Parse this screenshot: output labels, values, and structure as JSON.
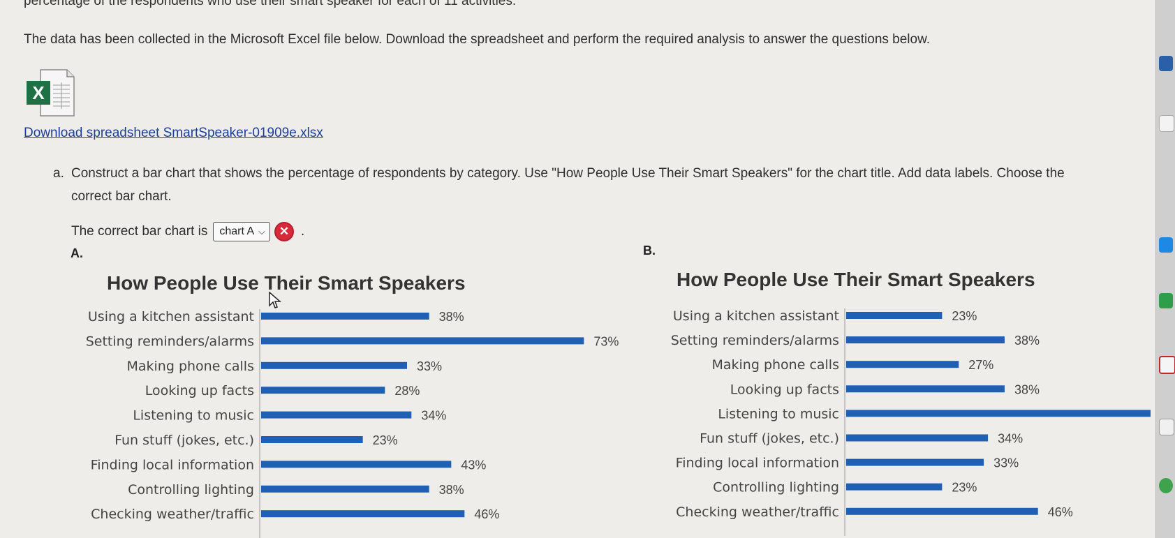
{
  "header": {
    "top_text": "percentage of the respondents who use their smart speaker for each of 11 activities.",
    "intro": "The data has been collected in the Microsoft Excel file below. Download the spreadsheet and perform the required analysis to answer the questions below."
  },
  "download": {
    "link_text": "Download spreadsheet SmartSpeaker-01909e.xlsx",
    "icon": "excel-file-icon",
    "icon_letter": "X"
  },
  "question_a": {
    "number": "a.",
    "text": "Construct a bar chart that shows the percentage of respondents by category. Use \"How People Use Their Smart Speakers\" for the chart title. Add data labels. Choose the correct bar chart.",
    "answer_prefix": "The correct bar chart is",
    "selected_option": "chart A",
    "status_icon": "incorrect-x-icon",
    "status_glyph": "✕",
    "answer_suffix": "."
  },
  "colors": {
    "bar": "#1f5fb4",
    "link": "#1a3f9a",
    "error": "#d52b3b"
  },
  "chart_data": [
    {
      "letter": "A.",
      "type": "bar",
      "orientation": "horizontal",
      "title": "How People Use Their Smart Speakers",
      "categories": [
        "Using a kitchen assistant",
        "Setting reminders/alarms",
        "Making phone calls",
        "Looking up facts",
        "Listening to music",
        "Fun stuff (jokes, etc.)",
        "Finding local information",
        "Controlling lighting",
        "Checking weather/traffic"
      ],
      "values": [
        38,
        73,
        33,
        28,
        34,
        23,
        43,
        38,
        46
      ],
      "value_labels": [
        "38%",
        "73%",
        "33%",
        "28%",
        "34%",
        "23%",
        "43%",
        "38%",
        "46%"
      ],
      "xlim": [
        0,
        75
      ]
    },
    {
      "letter": "B.",
      "type": "bar",
      "orientation": "horizontal",
      "title": "How People Use Their Smart Speakers",
      "categories": [
        "Using a kitchen assistant",
        "Setting reminders/alarms",
        "Making phone calls",
        "Looking up facts",
        "Listening to music",
        "Fun stuff (jokes, etc.)",
        "Finding local information",
        "Controlling lighting",
        "Checking weather/traffic"
      ],
      "values": [
        23,
        38,
        27,
        38,
        73,
        34,
        33,
        23,
        46
      ],
      "value_labels": [
        "23%",
        "38%",
        "27%",
        "38%",
        "",
        "34%",
        "33%",
        "23%",
        "46%"
      ],
      "xlim": [
        0,
        73
      ]
    }
  ]
}
